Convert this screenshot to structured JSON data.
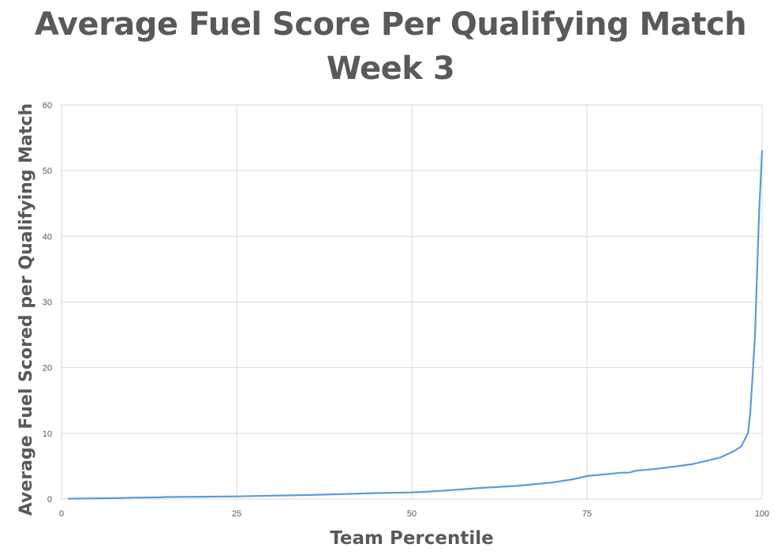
{
  "chart_data": {
    "type": "line",
    "title": [
      "Average Fuel Score Per Qualifying Match",
      "Week 3"
    ],
    "xlabel": "Team Percentile",
    "ylabel": "Average Fuel Scored per Qualifying Match",
    "xlim": [
      0,
      100
    ],
    "ylim": [
      0,
      60
    ],
    "xticks": [
      0,
      25,
      50,
      75,
      100
    ],
    "yticks": [
      0,
      10,
      20,
      30,
      40,
      50,
      60
    ],
    "grid": true,
    "line_color": "#5B9BD5",
    "series": [
      {
        "x": [
          1,
          5,
          8,
          10,
          14,
          15,
          20,
          25,
          30,
          35,
          40,
          45,
          50,
          52,
          55,
          60,
          65,
          68,
          70,
          73,
          75,
          78,
          80,
          81,
          82,
          85,
          88,
          90,
          92,
          94,
          95,
          96,
          97,
          97.5,
          98,
          98.3,
          98.6,
          99,
          99.3,
          99.6,
          100
        ],
        "y": [
          0.05,
          0.1,
          0.15,
          0.2,
          0.25,
          0.3,
          0.35,
          0.4,
          0.5,
          0.6,
          0.75,
          0.9,
          1.0,
          1.1,
          1.3,
          1.7,
          2.0,
          2.3,
          2.5,
          3.0,
          3.5,
          3.8,
          4.0,
          4.0,
          4.3,
          4.6,
          5.0,
          5.3,
          5.8,
          6.3,
          6.8,
          7.3,
          8.0,
          9.0,
          10.0,
          13.0,
          18.0,
          25.0,
          35.0,
          44.0,
          53.0
        ]
      }
    ]
  }
}
